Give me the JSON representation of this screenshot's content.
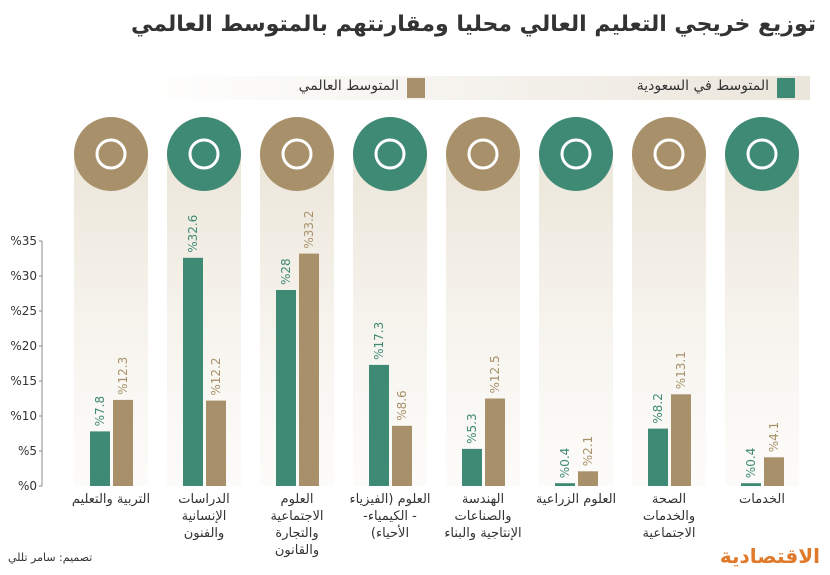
{
  "chart_data": {
    "type": "bar",
    "title": "توزيع خريجي التعليم العالي محليا ومقارنتهم بالمتوسط العالمي",
    "categories": [
      "التربية والتعليم",
      "الدراسات الإنسانية والفنون",
      "العلوم الاجتماعية والتجارة والقانون",
      "العلوم (الفيزياء - الكيمياء- الأحياء)",
      "الهندسة والصناعات الإنتاجية والبناء",
      "العلوم الزراعية",
      "الصحة والخدمات الاجتماعية",
      "الخدمات"
    ],
    "series": [
      {
        "name": "المتوسط في السعودية",
        "color": "#3f8a74",
        "values": [
          7.8,
          32.6,
          28,
          17.3,
          5.3,
          0.4,
          8.2,
          0.4
        ],
        "value_labels": [
          "%7.8",
          "%32.6",
          "%28",
          "%17.3",
          "%5.3",
          "%0.4",
          "%8.2",
          "%0.4"
        ]
      },
      {
        "name": "المتوسط العالمي",
        "color": "#a8916a",
        "values": [
          12.3,
          12.2,
          33.2,
          8.6,
          12.5,
          2.1,
          13.1,
          4.1
        ],
        "value_labels": [
          "%12.3",
          "%12.2",
          "%33.2",
          "%8.6",
          "%12.5",
          "%2.1",
          "%13.1",
          "%4.1"
        ]
      }
    ],
    "ylim": [
      0,
      35
    ],
    "yticks": [
      {
        "value": 0,
        "label": "%0"
      },
      {
        "value": 5,
        "label": "%5"
      },
      {
        "value": 10,
        "label": "%10"
      },
      {
        "value": 15,
        "label": "%15"
      },
      {
        "value": 20,
        "label": "%20"
      },
      {
        "value": 25,
        "label": "%25"
      },
      {
        "value": 30,
        "label": "%30"
      },
      {
        "value": 35,
        "label": "%35"
      }
    ],
    "grid": false,
    "credit": "تصميم: سامر تللي",
    "brand": "الاقتصادية"
  }
}
